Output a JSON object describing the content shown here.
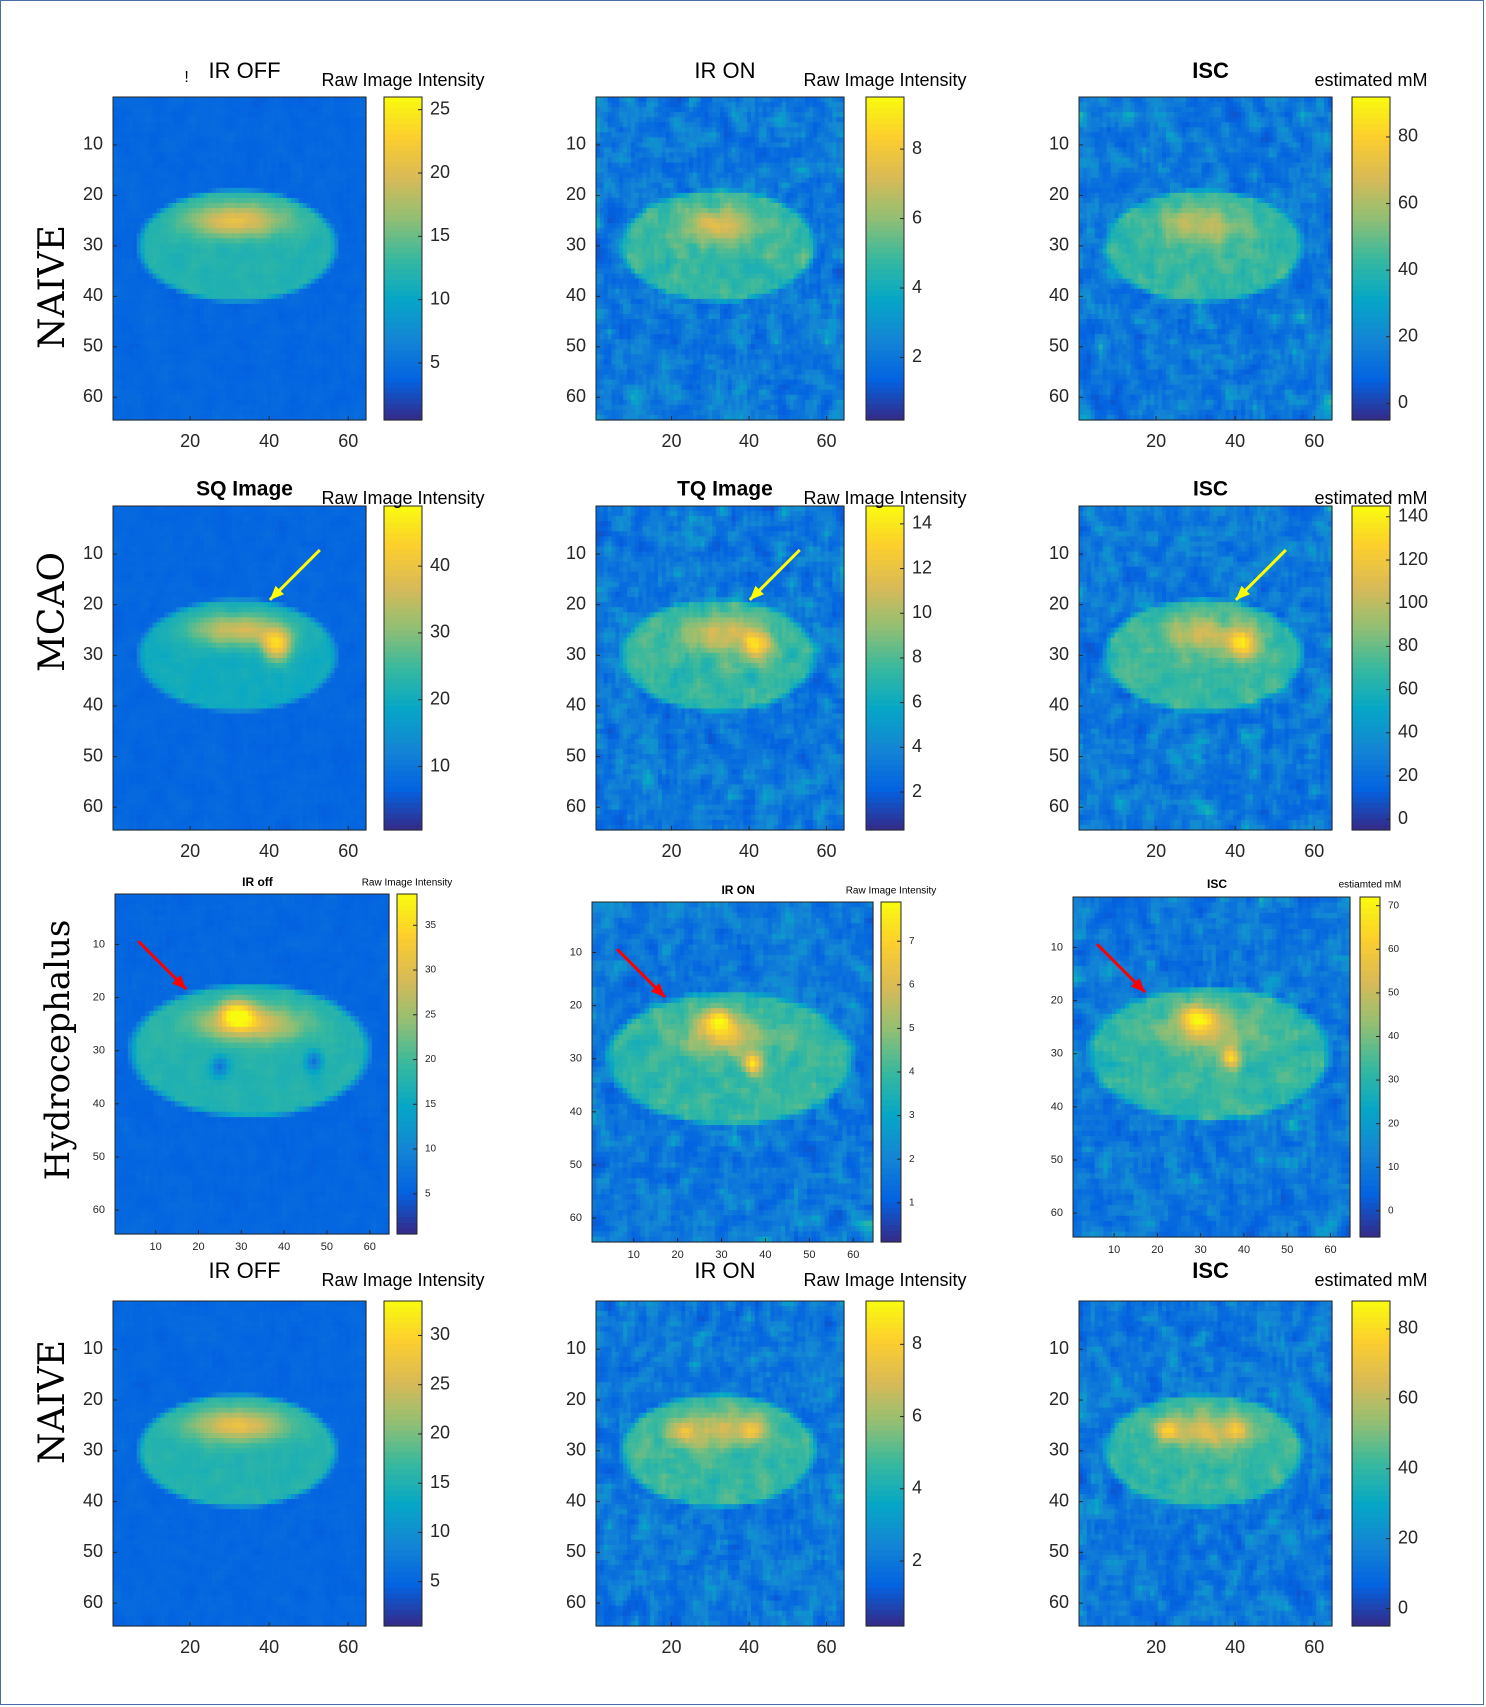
{
  "palette": {
    "parula": [
      "#352a87",
      "#0363e1",
      "#1485d4",
      "#06a7c6",
      "#38b99e",
      "#92bf73",
      "#d9ba56",
      "#fcce2e",
      "#f9fb0e"
    ],
    "arrow_yellow": "#ffff00",
    "arrow_red": "#ff0000",
    "frame": "#4a6fa5"
  },
  "rows": [
    {
      "label": "NAIVE",
      "panels": [
        {
          "title": "IR OFF",
          "title_prefix": "!",
          "colorbar_label": "Raw Image Intensity",
          "cb_ticks": [
            5,
            10,
            15,
            20,
            25
          ],
          "cb_range": [
            0.5,
            26
          ]
        },
        {
          "title": "IR ON",
          "title_prefix": "",
          "colorbar_label": "Raw Image Intensity",
          "cb_ticks": [
            2,
            4,
            6,
            8
          ],
          "cb_range": [
            0.2,
            9.5
          ]
        },
        {
          "title": "ISC",
          "title_prefix": "",
          "colorbar_label": "estimated mM",
          "cb_ticks": [
            0,
            20,
            40,
            60,
            80
          ],
          "cb_range": [
            -5,
            92
          ]
        }
      ]
    },
    {
      "label": "MCAO",
      "panels": [
        {
          "title": "SQ Image",
          "title_prefix": "",
          "colorbar_label": "Raw Image Intensity",
          "cb_ticks": [
            10,
            20,
            30,
            40
          ],
          "cb_range": [
            0.5,
            49
          ]
        },
        {
          "title": "TQ Image",
          "title_prefix": "",
          "colorbar_label": "Raw Image Intensity",
          "cb_ticks": [
            2,
            4,
            6,
            8,
            10,
            12,
            14
          ],
          "cb_range": [
            0.3,
            14.8
          ]
        },
        {
          "title": "ISC",
          "title_prefix": "",
          "colorbar_label": "estimated mM",
          "cb_ticks": [
            0,
            20,
            40,
            60,
            80,
            100,
            120,
            140
          ],
          "cb_range": [
            -5,
            145
          ]
        }
      ]
    },
    {
      "label": "Hydrocephalus",
      "panels": [
        {
          "title": "IR off",
          "title_prefix": "",
          "colorbar_label": "Raw Image Intensity",
          "cb_ticks": [
            5,
            10,
            15,
            20,
            25,
            30,
            35
          ],
          "cb_range": [
            0.5,
            38.5
          ]
        },
        {
          "title": "IR ON",
          "title_prefix": "",
          "colorbar_label": "Raw Image Intensity",
          "cb_ticks": [
            1,
            2,
            3,
            4,
            5,
            6,
            7
          ],
          "cb_range": [
            0.1,
            7.9
          ]
        },
        {
          "title": "ISC",
          "title_prefix": "",
          "colorbar_label": "estiamted mM",
          "cb_ticks": [
            0,
            10,
            20,
            30,
            40,
            50,
            60,
            70
          ],
          "cb_range": [
            -6,
            72
          ]
        }
      ]
    },
    {
      "label": "NAIVE",
      "panels": [
        {
          "title": "IR OFF",
          "title_prefix": "",
          "colorbar_label": "Raw Image Intensity",
          "cb_ticks": [
            5,
            10,
            15,
            20,
            25,
            30
          ],
          "cb_range": [
            0.5,
            33.5
          ]
        },
        {
          "title": "IR ON",
          "title_prefix": "",
          "colorbar_label": "Raw Image Intensity",
          "cb_ticks": [
            2,
            4,
            6,
            8
          ],
          "cb_range": [
            0.2,
            9.2
          ]
        },
        {
          "title": "ISC",
          "title_prefix": "",
          "colorbar_label": "estimated mM",
          "cb_ticks": [
            0,
            20,
            40,
            60,
            80
          ],
          "cb_range": [
            -5,
            88
          ]
        }
      ]
    }
  ],
  "chart_data": {
    "type": "heatmap",
    "grid_size": [
      64,
      64
    ],
    "x_ticks": [
      20,
      40,
      60
    ],
    "y_ticks": [
      10,
      20,
      30,
      40,
      50,
      60
    ],
    "hydrocephalus_x_ticks": [
      10,
      20,
      30,
      40,
      50,
      60
    ],
    "colormap": "parula",
    "annotations": [
      {
        "row": "MCAO",
        "panels": [
          "SQ Image",
          "TQ Image",
          "ISC"
        ],
        "type": "arrow",
        "color": "yellow"
      },
      {
        "row": "Hydrocephalus",
        "panels": [
          "IR off",
          "IR ON",
          "ISC"
        ],
        "type": "arrow",
        "color": "red"
      }
    ]
  }
}
